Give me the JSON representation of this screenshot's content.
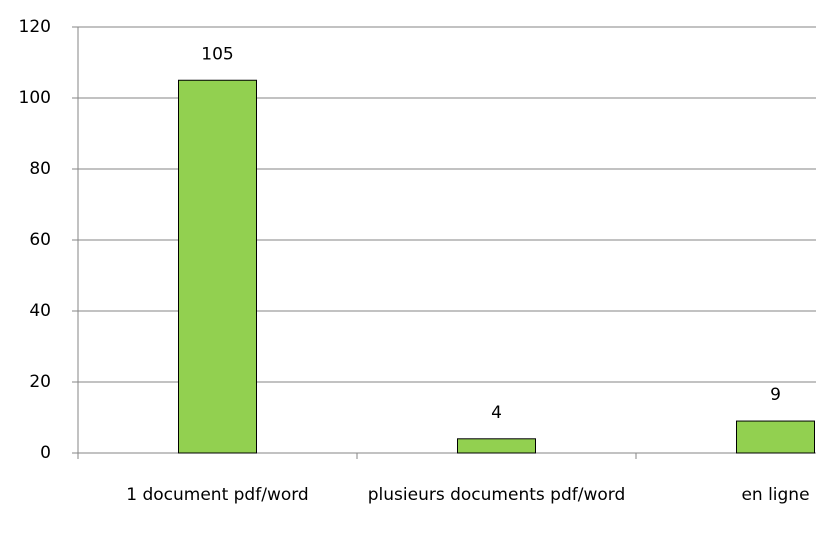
{
  "chart_data": {
    "type": "bar",
    "categories": [
      "1 document pdf/word",
      "plusieurs documents pdf/word",
      "en ligne"
    ],
    "values": [
      105,
      4,
      9
    ],
    "color": "#92d050",
    "ylim": [
      0,
      120
    ],
    "yticks": [
      0,
      20,
      40,
      60,
      80,
      100,
      120
    ],
    "grid": true
  }
}
